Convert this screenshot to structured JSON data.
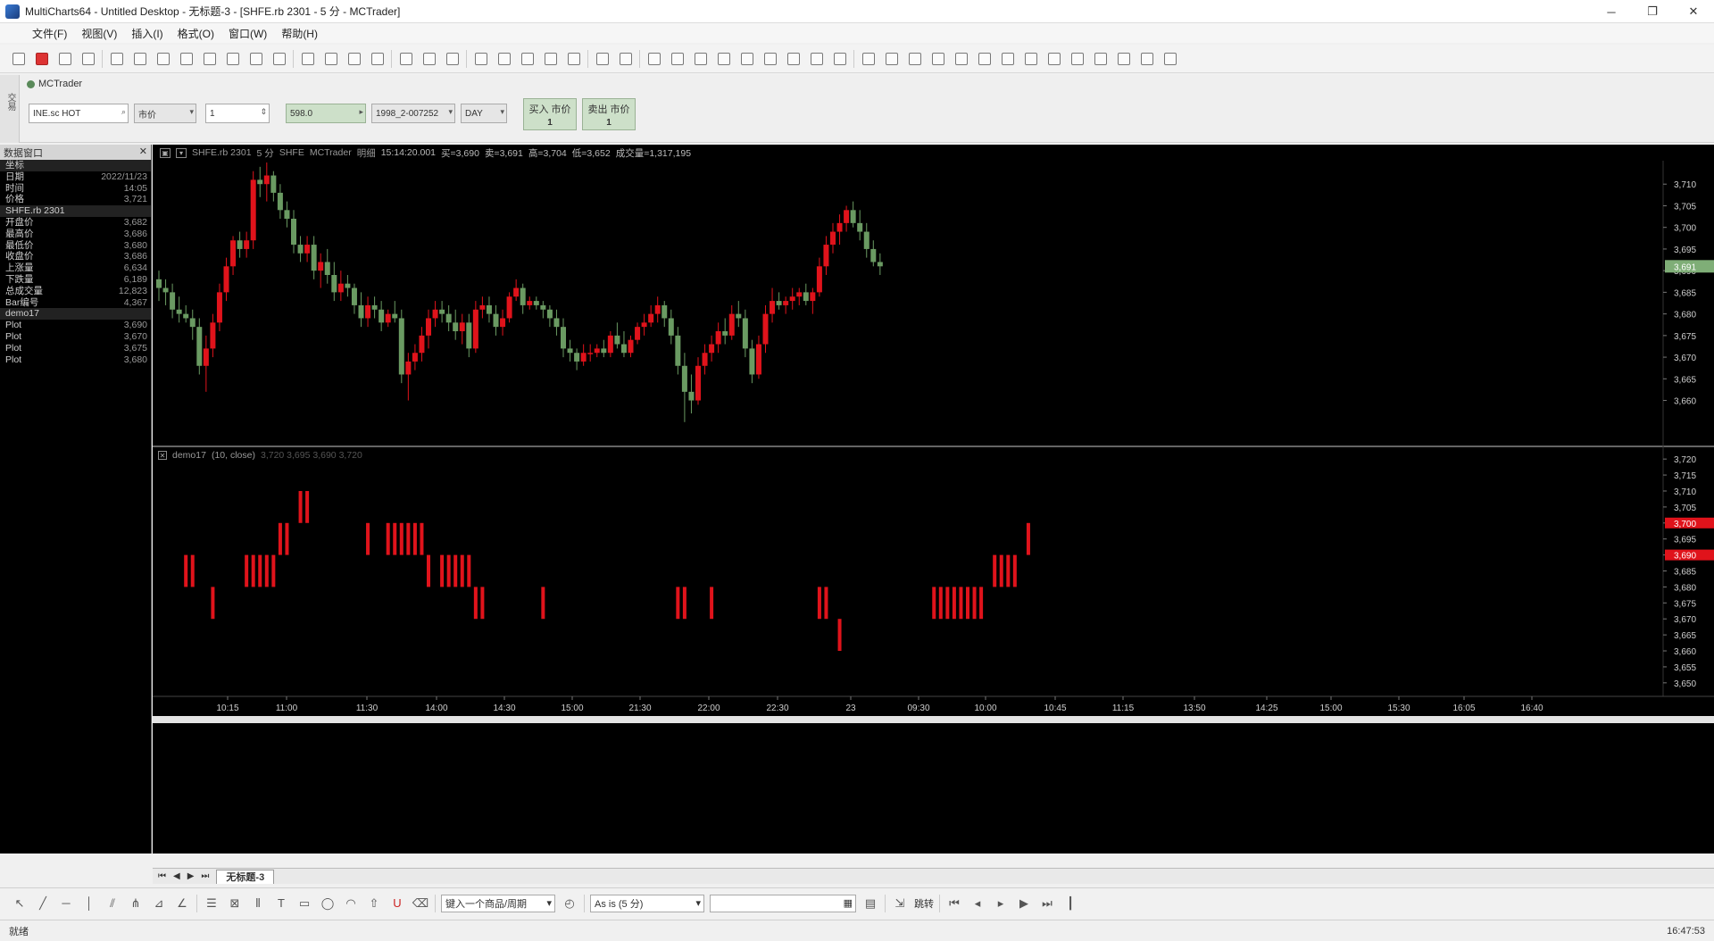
{
  "window": {
    "title": "MultiCharts64 - Untitled Desktop - 无标题-3 - [SHFE.rb 2301 - 5 分 - MCTrader]",
    "controls": [
      "─",
      "❐",
      "✕"
    ]
  },
  "menu": [
    "文件(F)",
    "视图(V)",
    "插入(I)",
    "格式(O)",
    "窗口(W)",
    "帮助(H)"
  ],
  "order_panel": {
    "side_label": "交易",
    "broker": "MCTrader",
    "symbol": "INE.sc HOT",
    "order_type": "市价",
    "quantity": "1",
    "price": "598.0",
    "account": "1998_2-007252",
    "tif": "DAY",
    "buy_label": "买入 市价",
    "buy_qty": "1",
    "sell_label": "卖出 市价",
    "sell_qty": "1"
  },
  "left_panel": {
    "title": "数据窗口",
    "rows": [
      {
        "k": "坐标",
        "v": "",
        "sec": true
      },
      {
        "k": "日期",
        "v": "2022/11/23"
      },
      {
        "k": "时间",
        "v": "14:05"
      },
      {
        "k": "价格",
        "v": "3,721"
      },
      {
        "k": "SHFE.rb 2301",
        "v": "",
        "sec": true
      },
      {
        "k": "开盘价",
        "v": "3,682"
      },
      {
        "k": "最高价",
        "v": "3,686"
      },
      {
        "k": "最低价",
        "v": "3,680"
      },
      {
        "k": "收盘价",
        "v": "3,686"
      },
      {
        "k": "上涨量",
        "v": "6,634"
      },
      {
        "k": "下跌量",
        "v": "6,189"
      },
      {
        "k": "总成交量",
        "v": "12,823"
      },
      {
        "k": "Bar编号",
        "v": "4,367"
      },
      {
        "k": "demo17",
        "v": "",
        "sec": true
      },
      {
        "k": "Plot",
        "v": "3,690"
      },
      {
        "k": "Plot",
        "v": "3,670"
      },
      {
        "k": "Plot",
        "v": "3,675"
      },
      {
        "k": "Plot",
        "v": "3,680"
      }
    ]
  },
  "chart_header": {
    "symbol": "SHFE.rb 2301",
    "frame": "5 分",
    "ex": "SHFE",
    "src": "MCTrader",
    "settle": "明细",
    "time": "15:14:20.001",
    "bid": "买=3,690",
    "ask": "卖=3,691",
    "high": "高=3,704",
    "low": "低=3,652",
    "vol": "成交量=1,317,195"
  },
  "indicator": {
    "name": "demo17",
    "params": "(10, close)",
    "values": "3,720  3,695  3,690  3,720"
  },
  "tab": {
    "name": "无标题-3"
  },
  "drawbar": {
    "symbol_input": "键入一个商品/周期",
    "mode": "As is (5 分)",
    "jump": "跳转"
  },
  "status": {
    "left": "就绪",
    "clock": "16:47:53"
  },
  "colors": {
    "up": "#e0131b",
    "down": "#6a9a62",
    "axis": "#cfcfcf",
    "indicator": "#e0131b"
  },
  "chart_data": [
    {
      "type": "candlestick",
      "title": "SHFE.rb 2301 - 5 分",
      "ylim": [
        3650,
        3715
      ],
      "yticks": [
        3660,
        3665,
        3670,
        3675,
        3680,
        3685,
        3690,
        3695,
        3700,
        3705,
        3710
      ],
      "last_price": "3,691",
      "ohlc": [
        [
          3688,
          3690,
          3683,
          3686
        ],
        [
          3686,
          3688,
          3682,
          3685
        ],
        [
          3685,
          3687,
          3679,
          3681
        ],
        [
          3681,
          3684,
          3678,
          3680
        ],
        [
          3680,
          3682,
          3678,
          3679
        ],
        [
          3679,
          3681,
          3674,
          3677
        ],
        [
          3677,
          3679,
          3666,
          3668
        ],
        [
          3668,
          3675,
          3662,
          3672
        ],
        [
          3672,
          3680,
          3670,
          3678
        ],
        [
          3678,
          3687,
          3676,
          3685
        ],
        [
          3685,
          3693,
          3683,
          3691
        ],
        [
          3691,
          3698,
          3689,
          3697
        ],
        [
          3697,
          3699,
          3693,
          3695
        ],
        [
          3695,
          3699,
          3693,
          3697
        ],
        [
          3697,
          3713,
          3695,
          3711
        ],
        [
          3711,
          3714,
          3707,
          3710
        ],
        [
          3710,
          3715,
          3706,
          3712
        ],
        [
          3712,
          3713,
          3706,
          3708
        ],
        [
          3708,
          3710,
          3702,
          3704
        ],
        [
          3704,
          3706,
          3700,
          3702
        ],
        [
          3702,
          3704,
          3694,
          3696
        ],
        [
          3696,
          3698,
          3692,
          3694
        ],
        [
          3694,
          3698,
          3692,
          3696
        ],
        [
          3696,
          3698,
          3688,
          3690
        ],
        [
          3690,
          3694,
          3686,
          3692
        ],
        [
          3692,
          3695,
          3687,
          3689
        ],
        [
          3689,
          3692,
          3683,
          3685
        ],
        [
          3685,
          3690,
          3683,
          3687
        ],
        [
          3687,
          3689,
          3684,
          3686
        ],
        [
          3686,
          3687,
          3680,
          3682
        ],
        [
          3682,
          3685,
          3677,
          3679
        ],
        [
          3679,
          3684,
          3677,
          3682
        ],
        [
          3682,
          3684,
          3679,
          3681
        ],
        [
          3681,
          3683,
          3676,
          3678
        ],
        [
          3678,
          3681,
          3677,
          3680
        ],
        [
          3680,
          3683,
          3678,
          3679
        ],
        [
          3679,
          3681,
          3664,
          3666
        ],
        [
          3666,
          3671,
          3660,
          3669
        ],
        [
          3669,
          3673,
          3667,
          3671
        ],
        [
          3671,
          3677,
          3669,
          3675
        ],
        [
          3675,
          3681,
          3672,
          3679
        ],
        [
          3679,
          3683,
          3677,
          3681
        ],
        [
          3681,
          3683,
          3678,
          3680
        ],
        [
          3680,
          3682,
          3676,
          3678
        ],
        [
          3678,
          3681,
          3674,
          3676
        ],
        [
          3676,
          3680,
          3673,
          3678
        ],
        [
          3678,
          3680,
          3670,
          3672
        ],
        [
          3672,
          3683,
          3671,
          3681
        ],
        [
          3681,
          3684,
          3679,
          3682
        ],
        [
          3682,
          3684,
          3678,
          3680
        ],
        [
          3680,
          3682,
          3675,
          3677
        ],
        [
          3677,
          3681,
          3675,
          3679
        ],
        [
          3679,
          3685,
          3678,
          3684
        ],
        [
          3684,
          3688,
          3683,
          3686
        ],
        [
          3686,
          3687,
          3680,
          3682
        ],
        [
          3682,
          3684,
          3681,
          3683
        ],
        [
          3683,
          3684,
          3681,
          3682
        ],
        [
          3682,
          3683,
          3679,
          3681
        ],
        [
          3681,
          3682,
          3677,
          3679
        ],
        [
          3679,
          3681,
          3675,
          3677
        ],
        [
          3677,
          3679,
          3670,
          3672
        ],
        [
          3672,
          3674,
          3669,
          3671
        ],
        [
          3671,
          3672,
          3667,
          3669
        ],
        [
          3669,
          3673,
          3668,
          3671
        ],
        [
          3671,
          3673,
          3669,
          3671
        ],
        [
          3671,
          3673,
          3670,
          3672
        ],
        [
          3672,
          3674,
          3670,
          3671
        ],
        [
          3671,
          3676,
          3670,
          3675
        ],
        [
          3675,
          3678,
          3672,
          3673
        ],
        [
          3673,
          3676,
          3670,
          3671
        ],
        [
          3671,
          3675,
          3670,
          3674
        ],
        [
          3674,
          3678,
          3673,
          3677
        ],
        [
          3677,
          3680,
          3675,
          3678
        ],
        [
          3678,
          3682,
          3677,
          3680
        ],
        [
          3680,
          3684,
          3678,
          3682
        ],
        [
          3682,
          3683,
          3677,
          3679
        ],
        [
          3679,
          3681,
          3673,
          3675
        ],
        [
          3675,
          3677,
          3666,
          3668
        ],
        [
          3668,
          3671,
          3655,
          3662
        ],
        [
          3662,
          3666,
          3657,
          3660
        ],
        [
          3660,
          3670,
          3659,
          3668
        ],
        [
          3668,
          3673,
          3666,
          3671
        ],
        [
          3671,
          3675,
          3669,
          3673
        ],
        [
          3673,
          3678,
          3671,
          3676
        ],
        [
          3676,
          3679,
          3673,
          3675
        ],
        [
          3675,
          3682,
          3674,
          3680
        ],
        [
          3680,
          3683,
          3677,
          3679
        ],
        [
          3679,
          3681,
          3670,
          3672
        ],
        [
          3672,
          3674,
          3664,
          3666
        ],
        [
          3666,
          3675,
          3665,
          3673
        ],
        [
          3673,
          3682,
          3671,
          3680
        ],
        [
          3680,
          3686,
          3678,
          3683
        ],
        [
          3683,
          3685,
          3681,
          3682
        ],
        [
          3682,
          3684,
          3680,
          3683
        ],
        [
          3683,
          3686,
          3681,
          3684
        ],
        [
          3684,
          3686,
          3682,
          3685
        ],
        [
          3685,
          3687,
          3682,
          3683
        ],
        [
          3683,
          3686,
          3680,
          3685
        ],
        [
          3685,
          3693,
          3684,
          3691
        ],
        [
          3691,
          3698,
          3689,
          3696
        ],
        [
          3696,
          3701,
          3694,
          3699
        ],
        [
          3699,
          3703,
          3696,
          3701
        ],
        [
          3701,
          3705,
          3699,
          3704
        ],
        [
          3704,
          3706,
          3700,
          3701
        ],
        [
          3701,
          3704,
          3697,
          3699
        ],
        [
          3699,
          3701,
          3693,
          3695
        ],
        [
          3695,
          3697,
          3691,
          3692
        ],
        [
          3692,
          3694,
          3689,
          3691
        ]
      ]
    },
    {
      "type": "bar",
      "title": "demo17 (10, close)",
      "ylim": [
        3648,
        3722
      ],
      "yticks": [
        3650,
        3655,
        3660,
        3665,
        3670,
        3675,
        3680,
        3685,
        3690,
        3695,
        3700,
        3705,
        3710,
        3715,
        3720
      ],
      "value_markers": [
        "3,700",
        "3,690"
      ],
      "segments": [
        {
          "i": 4,
          "lo": 3680,
          "hi": 3690
        },
        {
          "i": 5,
          "lo": 3680,
          "hi": 3690
        },
        {
          "i": 8,
          "lo": 3670,
          "hi": 3680
        },
        {
          "i": 13,
          "lo": 3680,
          "hi": 3690
        },
        {
          "i": 14,
          "lo": 3680,
          "hi": 3690
        },
        {
          "i": 15,
          "lo": 3680,
          "hi": 3690
        },
        {
          "i": 16,
          "lo": 3680,
          "hi": 3690
        },
        {
          "i": 17,
          "lo": 3680,
          "hi": 3690
        },
        {
          "i": 18,
          "lo": 3690,
          "hi": 3700
        },
        {
          "i": 19,
          "lo": 3690,
          "hi": 3700
        },
        {
          "i": 21,
          "lo": 3700,
          "hi": 3710
        },
        {
          "i": 22,
          "lo": 3700,
          "hi": 3710
        },
        {
          "i": 31,
          "lo": 3690,
          "hi": 3700
        },
        {
          "i": 34,
          "lo": 3690,
          "hi": 3700
        },
        {
          "i": 35,
          "lo": 3690,
          "hi": 3700
        },
        {
          "i": 36,
          "lo": 3690,
          "hi": 3700
        },
        {
          "i": 37,
          "lo": 3690,
          "hi": 3700
        },
        {
          "i": 38,
          "lo": 3690,
          "hi": 3700
        },
        {
          "i": 39,
          "lo": 3690,
          "hi": 3700
        },
        {
          "i": 40,
          "lo": 3680,
          "hi": 3690
        },
        {
          "i": 42,
          "lo": 3680,
          "hi": 3690
        },
        {
          "i": 43,
          "lo": 3680,
          "hi": 3690
        },
        {
          "i": 44,
          "lo": 3680,
          "hi": 3690
        },
        {
          "i": 45,
          "lo": 3680,
          "hi": 3690
        },
        {
          "i": 46,
          "lo": 3680,
          "hi": 3690
        },
        {
          "i": 47,
          "lo": 3670,
          "hi": 3680
        },
        {
          "i": 48,
          "lo": 3670,
          "hi": 3680
        },
        {
          "i": 57,
          "lo": 3670,
          "hi": 3680
        },
        {
          "i": 77,
          "lo": 3670,
          "hi": 3680
        },
        {
          "i": 78,
          "lo": 3670,
          "hi": 3680
        },
        {
          "i": 82,
          "lo": 3670,
          "hi": 3680
        },
        {
          "i": 98,
          "lo": 3670,
          "hi": 3680
        },
        {
          "i": 99,
          "lo": 3670,
          "hi": 3680
        },
        {
          "i": 101,
          "lo": 3660,
          "hi": 3670
        },
        {
          "i": 115,
          "lo": 3670,
          "hi": 3680
        },
        {
          "i": 116,
          "lo": 3670,
          "hi": 3680
        },
        {
          "i": 117,
          "lo": 3670,
          "hi": 3680
        },
        {
          "i": 118,
          "lo": 3670,
          "hi": 3680
        },
        {
          "i": 119,
          "lo": 3670,
          "hi": 3680
        },
        {
          "i": 120,
          "lo": 3670,
          "hi": 3680
        },
        {
          "i": 121,
          "lo": 3670,
          "hi": 3680
        },
        {
          "i": 122,
          "lo": 3670,
          "hi": 3680
        },
        {
          "i": 124,
          "lo": 3680,
          "hi": 3690
        },
        {
          "i": 125,
          "lo": 3680,
          "hi": 3690
        },
        {
          "i": 126,
          "lo": 3680,
          "hi": 3690
        },
        {
          "i": 127,
          "lo": 3680,
          "hi": 3690
        },
        {
          "i": 129,
          "lo": 3690,
          "hi": 3700
        }
      ]
    }
  ],
  "x_axis": [
    "10:15",
    "11:00",
    "11:30",
    "14:00",
    "14:30",
    "15:00",
    "21:30",
    "22:00",
    "22:30",
    "23",
    "09:30",
    "10:00",
    "10:45",
    "11:15",
    "13:50",
    "14:25",
    "15:00",
    "15:30",
    "16:05",
    "16:40"
  ]
}
